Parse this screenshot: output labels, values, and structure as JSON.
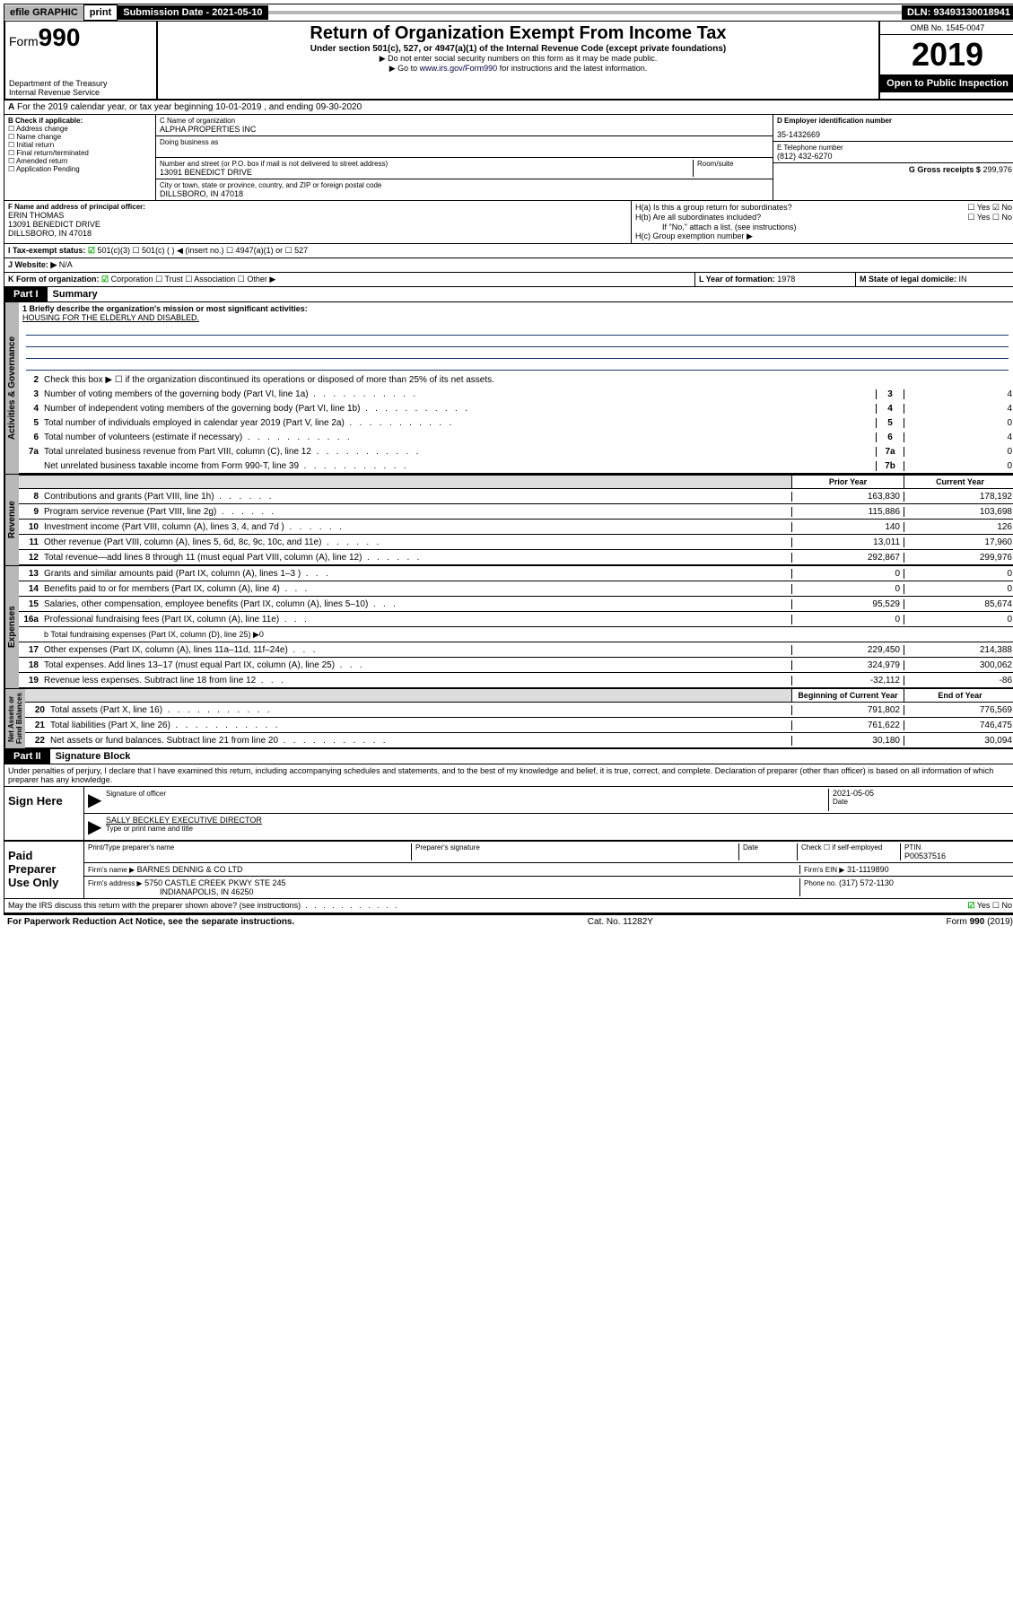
{
  "topbar": {
    "efile": "efile GRAPHIC",
    "print": "print",
    "submission": "Submission Date - 2021-05-10",
    "dln": "DLN: 93493130018941"
  },
  "header": {
    "form_prefix": "Form",
    "form_num": "990",
    "dept": "Department of the Treasury",
    "irs": "Internal Revenue Service",
    "title": "Return of Organization Exempt From Income Tax",
    "subtitle": "Under section 501(c), 527, or 4947(a)(1) of the Internal Revenue Code (except private foundations)",
    "note1": "▶ Do not enter social security numbers on this form as it may be made public.",
    "note2_pre": "▶ Go to ",
    "note2_link": "www.irs.gov/Form990",
    "note2_post": " for instructions and the latest information.",
    "omb": "OMB No. 1545-0047",
    "year": "2019",
    "open": "Open to Public Inspection"
  },
  "section_a": "For the 2019 calendar year, or tax year beginning 10-01-2019     , and ending 09-30-2020",
  "box_b": {
    "title": "B Check if applicable:",
    "items": [
      "☐ Address change",
      "☐ Name change",
      "☐ Initial return",
      "☐ Final return/terminated",
      "☐ Amended return",
      "☐ Application Pending"
    ]
  },
  "box_c": {
    "name_lbl": "C Name of organization",
    "name": "ALPHA PROPERTIES INC",
    "dba_lbl": "Doing business as",
    "addr_lbl": "Number and street (or P.O. box if mail is not delivered to street address)",
    "room_lbl": "Room/suite",
    "addr": "13091 BENEDICT DRIVE",
    "city_lbl": "City or town, state or province, country, and ZIP or foreign postal code",
    "city": "DILLSBORO, IN  47018"
  },
  "box_d": {
    "lbl": "D Employer identification number",
    "val": "35-1432669"
  },
  "box_e": {
    "lbl": "E Telephone number",
    "val": "(812) 432-6270"
  },
  "box_g": {
    "lbl": "G Gross receipts $",
    "val": "299,976"
  },
  "box_f": {
    "lbl": "F  Name and address of principal officer:",
    "name": "ERIN THOMAS",
    "addr1": "13091 BENEDICT DRIVE",
    "addr2": "DILLSBORO, IN  47018"
  },
  "box_h": {
    "a": "H(a)  Is this a group return for subordinates?",
    "a_ans": "☐ Yes ☑ No",
    "b": "H(b)  Are all subordinates included?",
    "b_ans": "☐ Yes ☐ No",
    "b_note": "If \"No,\" attach a list. (see instructions)",
    "c": "H(c)  Group exemption number ▶"
  },
  "row_i": {
    "lbl": "I    Tax-exempt status:",
    "opts": "☑ 501(c)(3)    ☐  501(c) (  ) ◀ (insert no.)    ☐ 4947(a)(1) or   ☐ 527"
  },
  "row_j": {
    "lbl": "J    Website: ▶",
    "val": "N/A"
  },
  "row_k": {
    "lbl": "K Form of organization:",
    "opts": "☑ Corporation  ☐ Trust  ☐ Association  ☐ Other ▶"
  },
  "row_l": {
    "lbl": "L Year of formation:",
    "val": "1978"
  },
  "row_m": {
    "lbl": "M State of legal domicile:",
    "val": "IN"
  },
  "part1": {
    "tag": "Part I",
    "title": "Summary"
  },
  "summary": {
    "l1_lbl": "1  Briefly describe the organization's mission or most significant activities:",
    "l1_val": "HOUSING FOR THE ELDERLY AND DISABLED.",
    "l2": "Check this box ▶ ☐ if the organization discontinued its operations or disposed of more than 25% of its net assets.",
    "lines_gov": [
      {
        "n": "3",
        "d": "Number of voting members of the governing body (Part VI, line 1a)",
        "box": "3",
        "v": "4"
      },
      {
        "n": "4",
        "d": "Number of independent voting members of the governing body (Part VI, line 1b)",
        "box": "4",
        "v": "4"
      },
      {
        "n": "5",
        "d": "Total number of individuals employed in calendar year 2019 (Part V, line 2a)",
        "box": "5",
        "v": "0"
      },
      {
        "n": "6",
        "d": "Total number of volunteers (estimate if necessary)",
        "box": "6",
        "v": "4"
      },
      {
        "n": "7a",
        "d": "Total unrelated business revenue from Part VIII, column (C), line 12",
        "box": "7a",
        "v": "0"
      },
      {
        "n": "",
        "d": "Net unrelated business taxable income from Form 990-T, line 39",
        "box": "7b",
        "v": "0"
      }
    ],
    "col_prior": "Prior Year",
    "col_current": "Current Year",
    "lines_rev": [
      {
        "n": "8",
        "d": "Contributions and grants (Part VIII, line 1h)",
        "p": "163,830",
        "c": "178,192"
      },
      {
        "n": "9",
        "d": "Program service revenue (Part VIII, line 2g)",
        "p": "115,886",
        "c": "103,698"
      },
      {
        "n": "10",
        "d": "Investment income (Part VIII, column (A), lines 3, 4, and 7d )",
        "p": "140",
        "c": "126"
      },
      {
        "n": "11",
        "d": "Other revenue (Part VIII, column (A), lines 5, 6d, 8c, 9c, 10c, and 11e)",
        "p": "13,011",
        "c": "17,960"
      },
      {
        "n": "12",
        "d": "Total revenue—add lines 8 through 11 (must equal Part VIII, column (A), line 12)",
        "p": "292,867",
        "c": "299,976"
      }
    ],
    "lines_exp": [
      {
        "n": "13",
        "d": "Grants and similar amounts paid (Part IX, column (A), lines 1–3 )",
        "p": "0",
        "c": "0"
      },
      {
        "n": "14",
        "d": "Benefits paid to or for members (Part IX, column (A), line 4)",
        "p": "0",
        "c": "0"
      },
      {
        "n": "15",
        "d": "Salaries, other compensation, employee benefits (Part IX, column (A), lines 5–10)",
        "p": "95,529",
        "c": "85,674"
      },
      {
        "n": "16a",
        "d": "Professional fundraising fees (Part IX, column (A), line 11e)",
        "p": "0",
        "c": "0"
      }
    ],
    "l16b": "b  Total fundraising expenses (Part IX, column (D), line 25) ▶0",
    "lines_exp2": [
      {
        "n": "17",
        "d": "Other expenses (Part IX, column (A), lines 11a–11d, 11f–24e)",
        "p": "229,450",
        "c": "214,388"
      },
      {
        "n": "18",
        "d": "Total expenses. Add lines 13–17 (must equal Part IX, column (A), line 25)",
        "p": "324,979",
        "c": "300,062"
      },
      {
        "n": "19",
        "d": "Revenue less expenses. Subtract line 18 from line 12",
        "p": "-32,112",
        "c": "-86"
      }
    ],
    "col_begin": "Beginning of Current Year",
    "col_end": "End of Year",
    "lines_net": [
      {
        "n": "20",
        "d": "Total assets (Part X, line 16)",
        "p": "791,802",
        "c": "776,569"
      },
      {
        "n": "21",
        "d": "Total liabilities (Part X, line 26)",
        "p": "761,622",
        "c": "746,475"
      },
      {
        "n": "22",
        "d": "Net assets or fund balances. Subtract line 21 from line 20",
        "p": "30,180",
        "c": "30,094"
      }
    ]
  },
  "part2": {
    "tag": "Part II",
    "title": "Signature Block"
  },
  "perjury": "Under penalties of perjury, I declare that I have examined this return, including accompanying schedules and statements, and to the best of my knowledge and belief, it is true, correct, and complete. Declaration of preparer (other than officer) is based on all information of which preparer has any knowledge.",
  "sign": {
    "here": "Sign Here",
    "sig_lbl": "Signature of officer",
    "date": "2021-05-05",
    "date_lbl": "Date",
    "name": "SALLY BECKLEY  EXECUTIVE DIRECTOR",
    "name_lbl": "Type or print name and title"
  },
  "paid": {
    "title": "Paid Preparer Use Only",
    "h1": "Print/Type preparer's name",
    "h2": "Preparer's signature",
    "h3": "Date",
    "h4_lbl": "Check ☐ if self-employed",
    "h5_lbl": "PTIN",
    "h5_val": "P00537516",
    "firm_name_lbl": "Firm's name      ▶",
    "firm_name": "BARNES DENNIG & CO LTD",
    "firm_ein_lbl": "Firm's EIN ▶",
    "firm_ein": "31-1119890",
    "firm_addr_lbl": "Firm's address ▶",
    "firm_addr": "5750 CASTLE CREEK PKWY STE 245",
    "firm_city": "INDIANAPOLIS, IN  46250",
    "phone_lbl": "Phone no.",
    "phone": "(317) 572-1130"
  },
  "discuss": {
    "q": "May the IRS discuss this return with the preparer shown above? (see instructions)",
    "a": "☑ Yes   ☐ No"
  },
  "footer": {
    "left": "For Paperwork Reduction Act Notice, see the separate instructions.",
    "mid": "Cat. No. 11282Y",
    "right": "Form 990 (2019)"
  }
}
